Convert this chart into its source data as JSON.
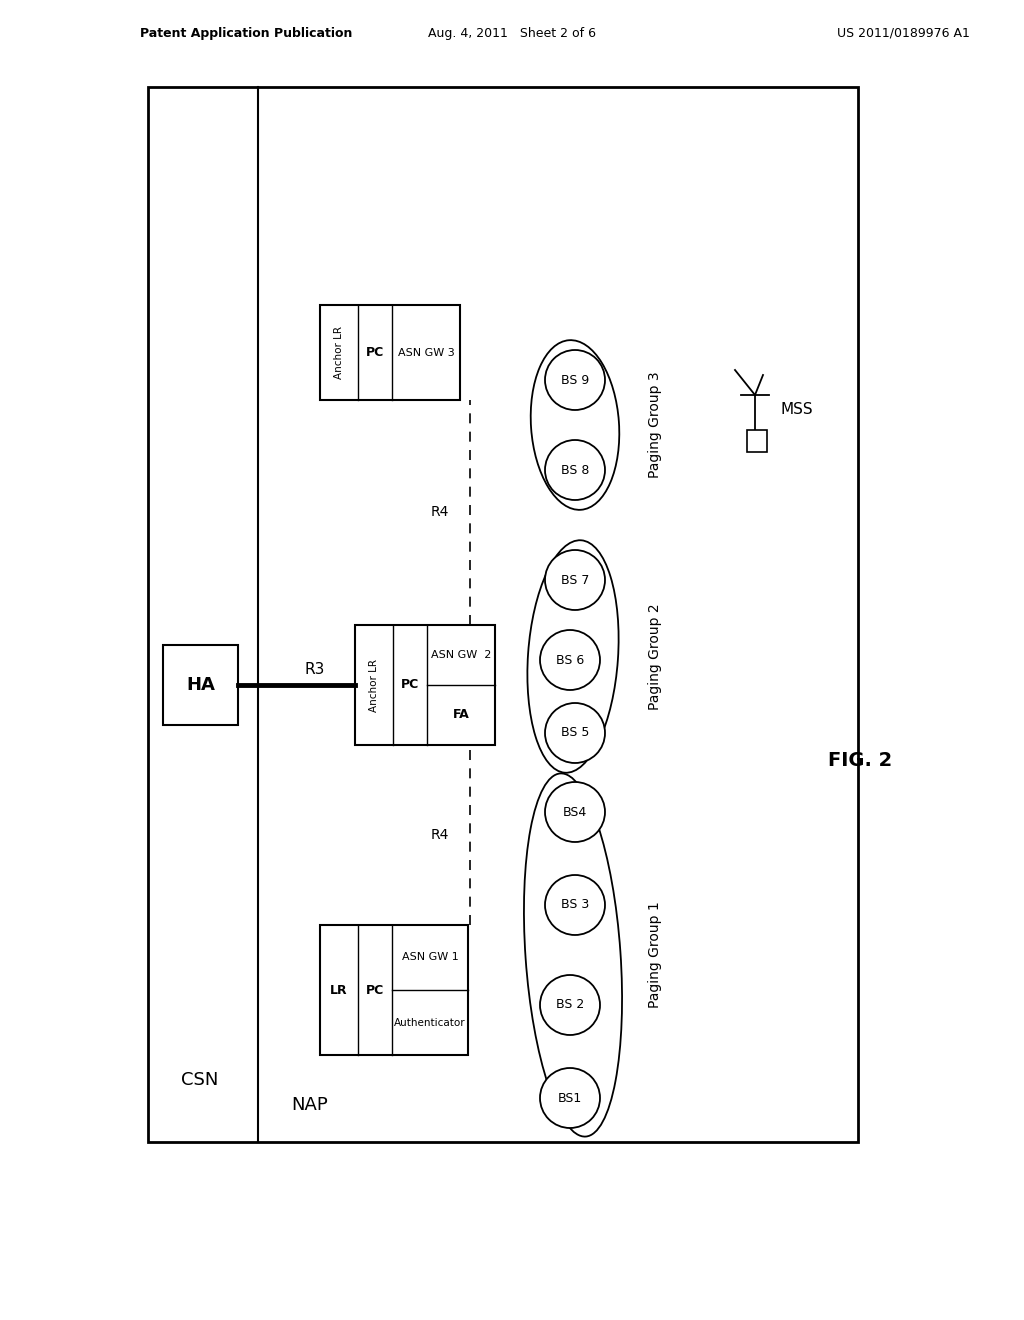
{
  "title_left": "Patent Application Publication",
  "title_mid": "Aug. 4, 2011   Sheet 2 of 6",
  "title_right": "US 2011/0189976 A1",
  "fig_label": "FIG. 2",
  "bg_color": "#ffffff",
  "csn_label": "CSN",
  "nap_label": "NAP",
  "ha_label": "HA",
  "r3_label": "R3",
  "r4_label_top": "R4",
  "r4_label_bot": "R4",
  "mss_label": "MSS",
  "paging_group1": "Paging Group 1",
  "paging_group2": "Paging Group 2",
  "paging_group3": "Paging Group 3"
}
